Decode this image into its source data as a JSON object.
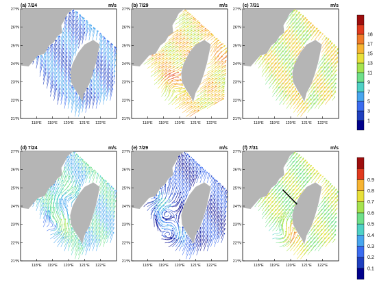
{
  "chart_data": [
    {
      "type": "streamline-map",
      "title": "(a) 7/24",
      "unit": "m/s",
      "lon_ticks": [
        "118°E",
        "119°E",
        "120°E",
        "121°E",
        "122°E"
      ],
      "lat_ticks": [
        "21°N",
        "22°N",
        "23°N",
        "24°N",
        "25°N",
        "26°N",
        "27°N"
      ],
      "xlim": [
        117,
        123
      ],
      "ylim": [
        21,
        27
      ],
      "flow": {
        "u": 0.25,
        "v": 1.0,
        "level": 2,
        "eddies": []
      }
    },
    {
      "type": "streamline-map",
      "title": "(b) 7/29",
      "unit": "m/s",
      "lon_ticks": [
        "118°E",
        "119°E",
        "120°E",
        "121°E",
        "122°E"
      ],
      "lat_ticks": [
        "21°N",
        "22°N",
        "23°N",
        "24°N",
        "25°N",
        "26°N",
        "27°N"
      ],
      "xlim": [
        117,
        123
      ],
      "ylim": [
        21,
        27
      ],
      "flow": {
        "u": 1.0,
        "v": 0.6,
        "level": 7,
        "eddies": [
          [
            119.5,
            22.8,
            -1.0
          ],
          [
            121.7,
            24.3,
            0.8
          ]
        ]
      }
    },
    {
      "type": "streamline-map",
      "title": "(c) 7/31",
      "unit": "m/s",
      "lon_ticks": [
        "118°E",
        "119°E",
        "120°E",
        "121°E",
        "122°E"
      ],
      "lat_ticks": [
        "21°N",
        "22°N",
        "23°N",
        "24°N",
        "25°N",
        "26°N",
        "27°N"
      ],
      "xlim": [
        117,
        123
      ],
      "ylim": [
        21,
        27
      ],
      "flow": {
        "u": 0.8,
        "v": 1.0,
        "level": 6,
        "eddies": []
      }
    },
    {
      "type": "streamline-map",
      "title": "(d) 7/24",
      "unit": "m/s",
      "lon_ticks": [
        "118°E",
        "119°E",
        "120°E",
        "121°E",
        "122°E"
      ],
      "lat_ticks": [
        "21°N",
        "22°N",
        "23°N",
        "24°N",
        "25°N",
        "26°N",
        "27°N"
      ],
      "xlim": [
        117,
        123
      ],
      "ylim": [
        21,
        27
      ],
      "flow": {
        "u": 0.3,
        "v": 0.8,
        "level": 4,
        "eddies": [
          [
            119.3,
            22.8,
            1.0
          ],
          [
            119.7,
            24.3,
            -0.8
          ]
        ]
      }
    },
    {
      "type": "streamline-map",
      "title": "(e) 7/29",
      "unit": "m/s",
      "lon_ticks": [
        "118°E",
        "119°E",
        "120°E",
        "121°E",
        "122°E"
      ],
      "lat_ticks": [
        "21°N",
        "22°N",
        "23°N",
        "24°N",
        "25°N",
        "26°N",
        "27°N"
      ],
      "xlim": [
        117,
        123
      ],
      "ylim": [
        21,
        27
      ],
      "flow": {
        "u": 0.2,
        "v": 0.5,
        "level": 2,
        "eddies": [
          [
            119.0,
            23.6,
            -1.0
          ],
          [
            119.5,
            22.4,
            0.9
          ],
          [
            118.5,
            24.5,
            0.8
          ]
        ]
      }
    },
    {
      "type": "streamline-map",
      "title": "(f) 7/31",
      "unit": "m/s",
      "lon_ticks": [
        "118°E",
        "119°E",
        "120°E",
        "121°E",
        "122°E"
      ],
      "lat_ticks": [
        "21°N",
        "22°N",
        "23°N",
        "24°N",
        "25°N",
        "26°N",
        "27°N"
      ],
      "xlim": [
        117,
        123
      ],
      "ylim": [
        21,
        27
      ],
      "flow": {
        "u": 0.6,
        "v": 0.7,
        "level": 6,
        "eddies": [
          [
            119.6,
            22.3,
            1.0
          ]
        ]
      },
      "section_line": [
        [
          119.5,
          24.9
        ],
        [
          120.4,
          24.1
        ]
      ]
    }
  ],
  "colorbars": [
    {
      "labels": [
        "1",
        "3",
        "5",
        "7",
        "9",
        "11",
        "13",
        "15",
        "17",
        "18"
      ],
      "colors": [
        "#00008b",
        "#1f3fbf",
        "#3b6cf0",
        "#48a6ef",
        "#4fd1c5",
        "#6fe08a",
        "#a6e34f",
        "#e8e03a",
        "#f7b432",
        "#f07b2a",
        "#e03a1e",
        "#9e0d0d"
      ]
    },
    {
      "labels": [
        "0.1",
        "0.2",
        "0.3",
        "0.4",
        "0.5",
        "0.6",
        "0.7",
        "0.8",
        "0.9"
      ],
      "colors": [
        "#00008b",
        "#1f3fbf",
        "#3b6cf0",
        "#48a6ef",
        "#4fd1c5",
        "#6fe08a",
        "#a6e34f",
        "#e8e03a",
        "#f7b432",
        "#e03a1e",
        "#9e0d0d"
      ]
    }
  ]
}
